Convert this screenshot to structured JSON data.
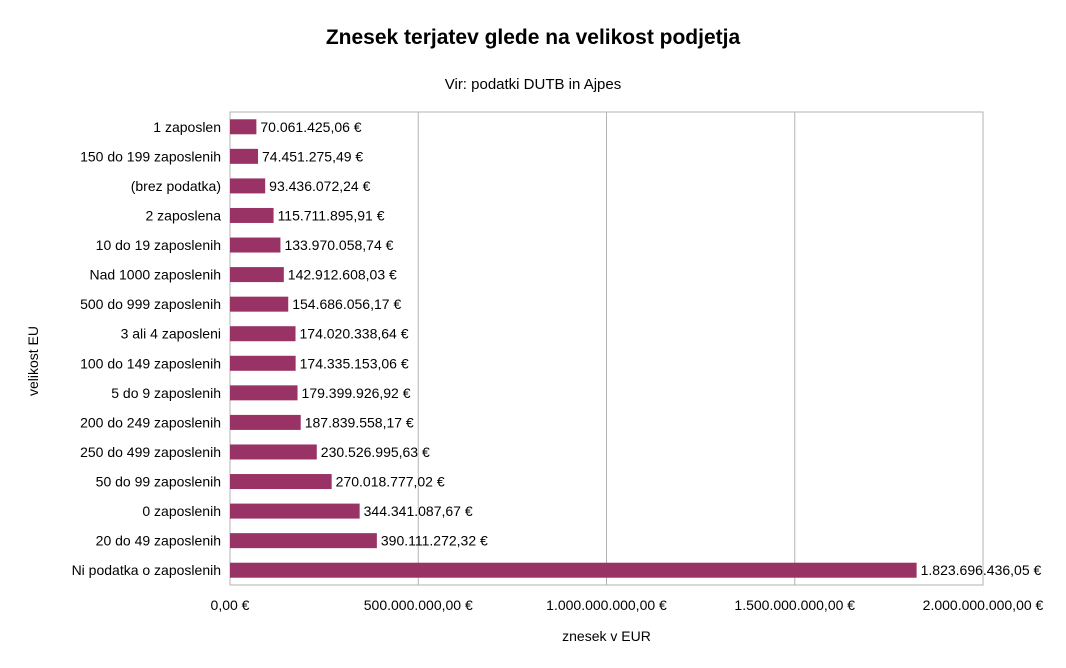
{
  "chart_data": {
    "type": "bar",
    "orientation": "horizontal",
    "title": "Znesek terjatev glede na velikost podjetja",
    "subtitle": "Vir: podatki DUTB in Ajpes",
    "xlabel": "znesek v EUR",
    "ylabel": "velikost EU",
    "xlim": [
      0,
      2000000000
    ],
    "x_ticks": [
      0,
      500000000,
      1000000000,
      1500000000,
      2000000000
    ],
    "x_tick_labels": [
      "0,00 €",
      "500.000.000,00 €",
      "1.000.000.000,00 €",
      "1.500.000.000,00 €",
      "2.000.000.000,00 €"
    ],
    "grid": "vertical",
    "legend": "none",
    "bar_color": "#993366",
    "categories": [
      "1 zaposlen",
      "150 do 199 zaposlenih",
      "(brez podatka)",
      "2 zaposlena",
      "10 do 19 zaposlenih",
      "Nad 1000 zaposlenih",
      "500 do 999 zaposlenih",
      "3 ali 4 zaposleni",
      "100 do 149 zaposlenih",
      "5 do 9 zaposlenih",
      "200 do 249 zaposlenih",
      "250 do 499 zaposlenih",
      "50 do 99 zaposlenih",
      "0 zaposlenih",
      "20 do 49 zaposlenih",
      "Ni podatka o zaposlenih"
    ],
    "values": [
      70061425.06,
      74451275.49,
      93436072.24,
      115711895.91,
      133970058.74,
      142912608.03,
      154686056.17,
      174020338.64,
      174335153.06,
      179399926.92,
      187839558.17,
      230526995.63,
      270018777.02,
      344341087.67,
      390111272.32,
      1823696436.05
    ],
    "data_labels": [
      "70.061.425,06 €",
      "74.451.275,49 €",
      "93.436.072,24 €",
      "115.711.895,91 €",
      "133.970.058,74 €",
      "142.912.608,03 €",
      "154.686.056,17 €",
      "174.020.338,64 €",
      "174.335.153,06 €",
      "179.399.926,92 €",
      "187.839.558,17 €",
      "230.526.995,63 €",
      "270.018.777,02 €",
      "344.341.087,67 €",
      "390.111.272,32 €",
      "1.823.696.436,05 €"
    ]
  }
}
